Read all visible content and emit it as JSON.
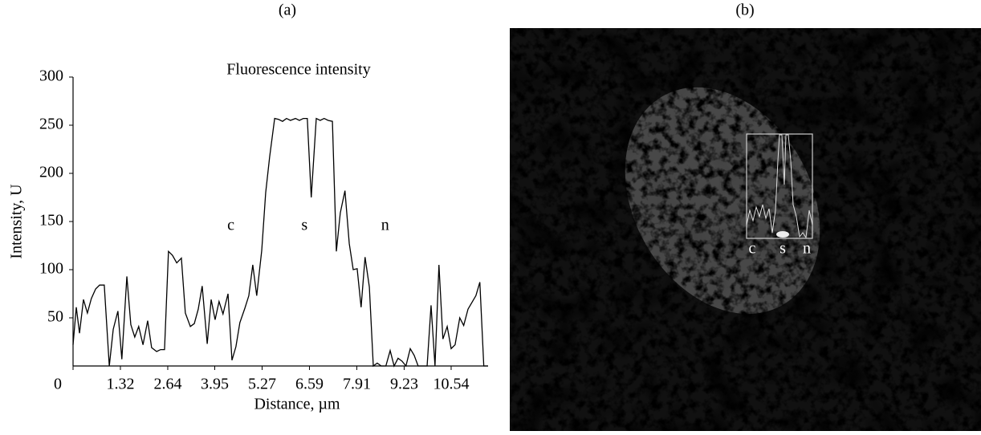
{
  "chart_data": {
    "type": "line",
    "panel_label": "(a)",
    "title": "Fluorescence intensity",
    "xlabel": "Distance, µm",
    "ylabel": "Intensity, U",
    "annotations": [
      {
        "text": "c",
        "x": 4.4,
        "y": 145
      },
      {
        "text": "s",
        "x": 6.45,
        "y": 145
      },
      {
        "text": "n",
        "x": 8.7,
        "y": 145
      }
    ],
    "xlim": [
      0,
      11.57
    ],
    "ylim": [
      0,
      300
    ],
    "xticks": [
      0,
      1.32,
      2.64,
      3.95,
      5.27,
      6.59,
      7.91,
      9.23,
      10.54
    ],
    "yticks": [
      50,
      100,
      150,
      200,
      250,
      300
    ],
    "color": "#000000",
    "x": [
      0,
      0.09,
      0.18,
      0.29,
      0.4,
      0.51,
      0.63,
      0.74,
      0.87,
      1.01,
      1.12,
      1.25,
      1.36,
      1.5,
      1.61,
      1.72,
      1.83,
      1.95,
      2.08,
      2.19,
      2.33,
      2.44,
      2.55,
      2.66,
      2.77,
      2.89,
      3.02,
      3.13,
      3.27,
      3.38,
      3.49,
      3.6,
      3.74,
      3.85,
      3.96,
      4.07,
      4.18,
      4.32,
      4.43,
      4.54,
      4.65,
      4.79,
      4.9,
      5.01,
      5.12,
      5.26,
      5.37,
      5.48,
      5.62,
      5.73,
      5.84,
      5.95,
      6.06,
      6.2,
      6.31,
      6.42,
      6.53,
      6.64,
      6.78,
      6.89,
      7.0,
      7.11,
      7.23,
      7.34,
      7.45,
      7.58,
      7.7,
      7.81,
      7.92,
      8.03,
      8.14,
      8.26,
      8.37,
      8.48,
      8.59,
      8.72,
      8.84,
      8.95,
      9.06,
      9.17,
      9.28,
      9.4,
      9.51,
      9.62,
      9.75,
      9.87,
      9.98,
      10.09,
      10.2,
      10.31,
      10.43,
      10.54,
      10.65,
      10.78,
      10.89,
      11.01,
      11.12,
      11.23,
      11.34,
      11.45,
      11.57
    ],
    "values": [
      22,
      61,
      34,
      69,
      55,
      70,
      80,
      84,
      84,
      0,
      38,
      57,
      7,
      93,
      43,
      30,
      41,
      22,
      47,
      19,
      15,
      17,
      17,
      119,
      115,
      107,
      112,
      55,
      41,
      44,
      59,
      83,
      23,
      69,
      48,
      67,
      54,
      75,
      6,
      20,
      45,
      60,
      73,
      105,
      73,
      120,
      180,
      217,
      257,
      256,
      254,
      257,
      255,
      257,
      255,
      257,
      257,
      175,
      257,
      255,
      257,
      255,
      254,
      119,
      159,
      182,
      127,
      100,
      101,
      61,
      113,
      82,
      0,
      3,
      0,
      0,
      16,
      0,
      8,
      5,
      0,
      18,
      11,
      0,
      0,
      0,
      63,
      0,
      105,
      28,
      41,
      18,
      22,
      50,
      42,
      59,
      66,
      73,
      87,
      0,
      0
    ]
  },
  "image": {
    "panel_label": "(b)",
    "inset_labels": [
      "c",
      "s",
      "n"
    ]
  }
}
